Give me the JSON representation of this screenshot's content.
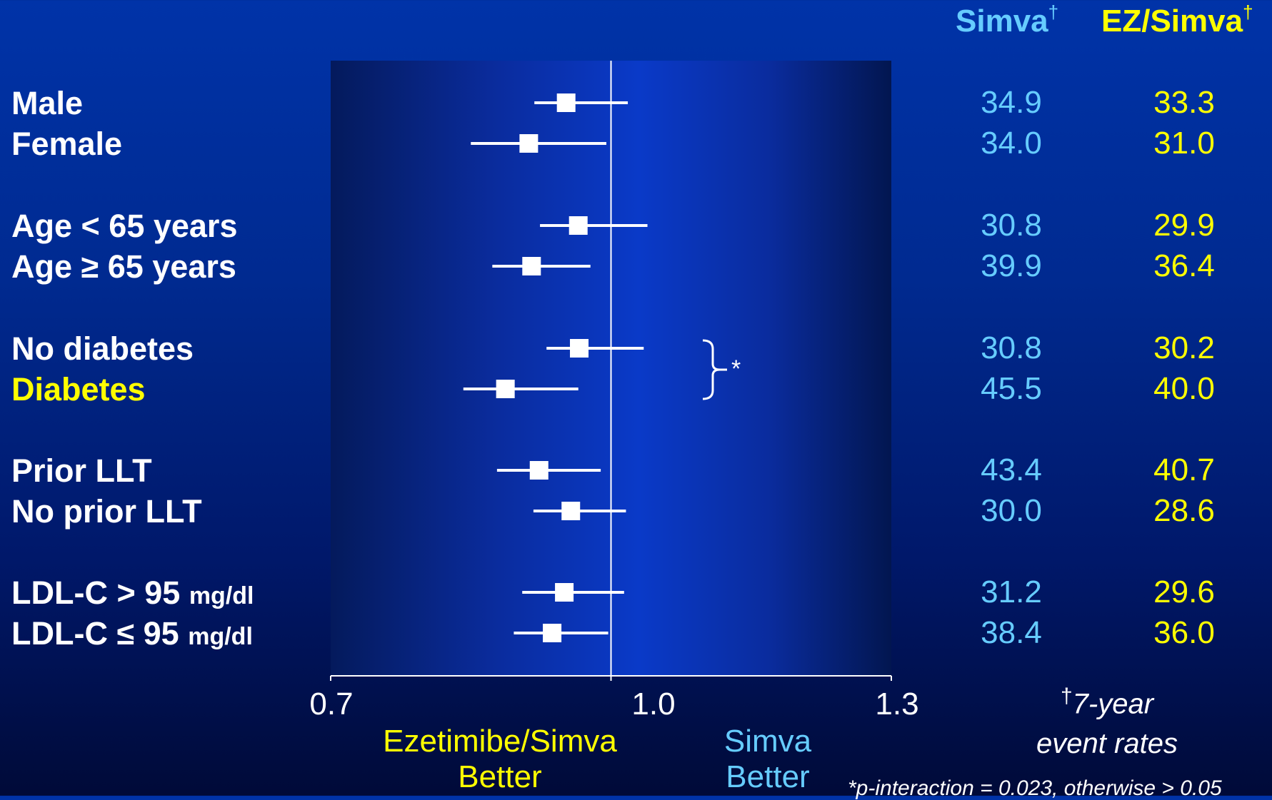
{
  "header": {
    "simva": "Simva",
    "simva_mark": "†",
    "ez_simva": "EZ/Simva",
    "ez_simva_mark": "†"
  },
  "rows": [
    {
      "label": "Male",
      "hr": 0.952,
      "lo": 0.918,
      "hi": 1.018,
      "simva": "34.9",
      "ez_simva": "33.3"
    },
    {
      "label": "Female",
      "hr": 0.912,
      "lo": 0.85,
      "hi": 0.995,
      "simva": "34.0",
      "ez_simva": "31.0"
    },
    {
      "label": "Age < 65 years",
      "hr": 0.965,
      "lo": 0.924,
      "hi": 1.039,
      "simva": "30.8",
      "ez_simva": "29.9"
    },
    {
      "label": "Age ≥ 65 years",
      "hr": 0.915,
      "lo": 0.873,
      "hi": 0.978,
      "simva": "39.9",
      "ez_simva": "36.4"
    },
    {
      "label": "No diabetes",
      "hr": 0.966,
      "lo": 0.931,
      "hi": 1.035,
      "simva": "30.8",
      "ez_simva": "30.2"
    },
    {
      "label": "Diabetes",
      "hr": 0.887,
      "lo": 0.842,
      "hi": 0.965,
      "simva": "45.5",
      "ez_simva": "40.0",
      "highlight": true
    },
    {
      "label": "Prior LLT",
      "hr": 0.923,
      "lo": 0.878,
      "hi": 0.989,
      "simva": "43.4",
      "ez_simva": "40.7"
    },
    {
      "label": "No prior LLT",
      "hr": 0.957,
      "lo": 0.917,
      "hi": 1.016,
      "simva": "30.0",
      "ez_simva": "28.6"
    },
    {
      "label": "LDL-C > 95",
      "unit": "mg/dl",
      "hr": 0.95,
      "lo": 0.905,
      "hi": 1.014,
      "simva": "31.2",
      "ez_simva": "29.6"
    },
    {
      "label": "LDL-C ≤ 95",
      "unit": "mg/dl",
      "hr": 0.937,
      "lo": 0.896,
      "hi": 0.997,
      "simva": "38.4",
      "ez_simva": "36.0"
    }
  ],
  "chart_data": {
    "type": "forest",
    "xlim": [
      0.7,
      1.3
    ],
    "reference_line": 1.0,
    "x_ticks": [
      "0.7",
      "1.0",
      "1.3"
    ],
    "categories": [
      "Male",
      "Female",
      "Age < 65 years",
      "Age ≥ 65 years",
      "No diabetes",
      "Diabetes",
      "Prior LLT",
      "No prior LLT",
      "LDL-C > 95 mg/dl",
      "LDL-C ≤ 95 mg/dl"
    ],
    "series": [
      {
        "name": "Simva",
        "values": [
          34.9,
          34.0,
          30.8,
          39.9,
          30.8,
          45.5,
          43.4,
          30.0,
          31.2,
          38.4
        ]
      },
      {
        "name": "EZ/Simva",
        "values": [
          33.3,
          31.0,
          29.9,
          36.4,
          30.2,
          40.0,
          40.7,
          28.6,
          29.6,
          36.0
        ]
      }
    ],
    "interaction_bracket": {
      "rows": [
        "No diabetes",
        "Diabetes"
      ],
      "mark": "*"
    },
    "colors": {
      "simva": "#66ccff",
      "ez_simva": "#ffff00",
      "marker": "#ffffff"
    }
  },
  "axis_labels": {
    "left_line1": "Ezetimibe/Simva",
    "left_line2": "Better",
    "right_line1": "Simva",
    "right_line2": "Better"
  },
  "notes": {
    "rates_mark": "†",
    "rates_line1": "7-year",
    "rates_line2": "event rates",
    "interaction": "*p-interaction = 0.023, otherwise > 0.05"
  }
}
